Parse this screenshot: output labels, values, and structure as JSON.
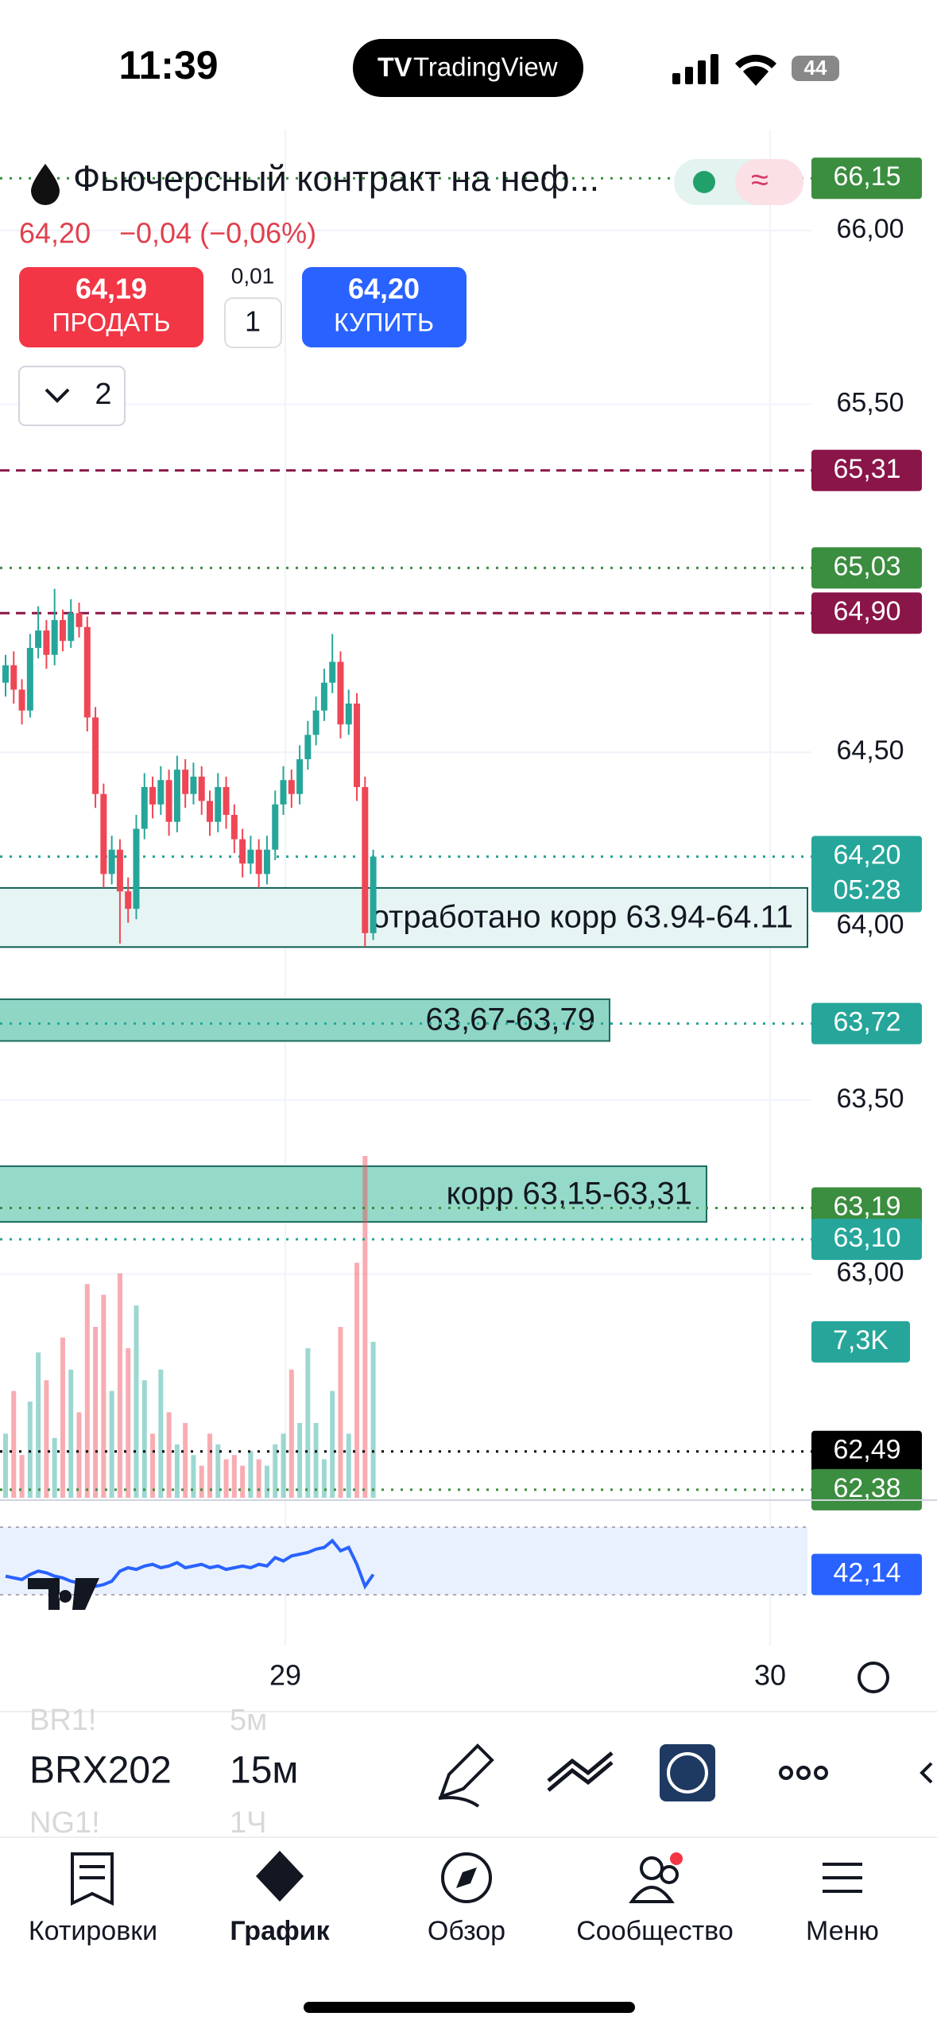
{
  "status_bar": {
    "time": "11:39",
    "app": "TradingView",
    "battery": "44"
  },
  "header": {
    "title": "Фьючерсный контракт на неф...",
    "price": "64,20",
    "change": "−0,04 (−0,06%)"
  },
  "trade": {
    "sell_price": "64,19",
    "sell": "ПРОДАТЬ",
    "qty_step": "0,01",
    "qty": "1",
    "buy_price": "64,20",
    "buy": "КУПИТЬ"
  },
  "dropdown": "2",
  "chart": {
    "ylim": [
      62.35,
      66.29
    ],
    "yticks": [
      {
        "value": 66,
        "label": "66,00"
      },
      {
        "value": 65.5,
        "label": "65,50"
      },
      {
        "value": 64.5,
        "label": "64,50"
      },
      {
        "value": 64,
        "label": "64,00"
      },
      {
        "value": 63.5,
        "label": "63,50"
      },
      {
        "value": 63,
        "label": "63,00"
      }
    ],
    "price_tags": [
      {
        "value": 66.15,
        "label": "66,15",
        "color": "#3b8d3f",
        "style": "dotted"
      },
      {
        "value": 65.31,
        "label": "65,31",
        "color": "#8a1548",
        "style": "dashed"
      },
      {
        "value": 65.03,
        "label": "65,03",
        "color": "#3b8d3f",
        "style": "dotted"
      },
      {
        "value": 64.9,
        "label": "64,90",
        "color": "#8a1548",
        "style": "dashed"
      },
      {
        "value": 64.2,
        "label": "64,20",
        "color": "#26a69a",
        "style": "dotted",
        "sub": "05:28"
      },
      {
        "value": 63.72,
        "label": "63,72",
        "color": "#26a69a",
        "style": "dotted"
      },
      {
        "value": 63.19,
        "label": "63,19",
        "color": "#3b8d3f",
        "style": "dotted"
      },
      {
        "value": 63.1,
        "label": "63,10",
        "color": "#26a69a",
        "style": "dotted"
      },
      {
        "value": 62.49,
        "label": "62,49",
        "color": "#000000",
        "style": "dotted"
      },
      {
        "value": 62.38,
        "label": "62,38",
        "color": "#3b8d3f",
        "style": "dotted"
      }
    ],
    "zones": [
      {
        "low": 63.94,
        "high": 64.11,
        "label": "отработано корр 63.94-64.11",
        "fill": "#e6f5f3",
        "border": "#0e5e55",
        "end": 1016
      },
      {
        "low": 63.67,
        "high": 63.79,
        "label": "63,67-63,79",
        "fill": "#8fd6c5",
        "border": "#1d6b5f",
        "end": 767
      },
      {
        "low": 63.15,
        "high": 63.31,
        "label": "корр 63,15-63,31",
        "fill": "#95d9c8",
        "border": "#1d6b5f",
        "end": 889
      }
    ],
    "up_color": "#26a69a",
    "down_color": "#ef4655",
    "candles": [
      {
        "o": 64.7,
        "h": 64.78,
        "l": 64.66,
        "c": 64.75
      },
      {
        "o": 64.75,
        "h": 64.79,
        "l": 64.64,
        "c": 64.68
      },
      {
        "o": 64.68,
        "h": 64.71,
        "l": 64.58,
        "c": 64.62
      },
      {
        "o": 64.62,
        "h": 64.84,
        "l": 64.6,
        "c": 64.8
      },
      {
        "o": 64.8,
        "h": 64.92,
        "l": 64.77,
        "c": 64.85
      },
      {
        "o": 64.85,
        "h": 64.88,
        "l": 64.74,
        "c": 64.78
      },
      {
        "o": 64.78,
        "h": 64.97,
        "l": 64.75,
        "c": 64.88
      },
      {
        "o": 64.88,
        "h": 64.91,
        "l": 64.79,
        "c": 64.82
      },
      {
        "o": 64.82,
        "h": 64.94,
        "l": 64.8,
        "c": 64.9
      },
      {
        "o": 64.9,
        "h": 64.93,
        "l": 64.83,
        "c": 64.86
      },
      {
        "o": 64.86,
        "h": 64.89,
        "l": 64.56,
        "c": 64.6
      },
      {
        "o": 64.6,
        "h": 64.63,
        "l": 64.34,
        "c": 64.38
      },
      {
        "o": 64.38,
        "h": 64.41,
        "l": 64.11,
        "c": 64.15
      },
      {
        "o": 64.15,
        "h": 64.26,
        "l": 64.12,
        "c": 64.22
      },
      {
        "o": 64.22,
        "h": 64.25,
        "l": 63.95,
        "c": 64.1
      },
      {
        "o": 64.1,
        "h": 64.14,
        "l": 64.01,
        "c": 64.05
      },
      {
        "o": 64.05,
        "h": 64.32,
        "l": 64.02,
        "c": 64.28
      },
      {
        "o": 64.28,
        "h": 64.44,
        "l": 64.25,
        "c": 64.4
      },
      {
        "o": 64.4,
        "h": 64.43,
        "l": 64.31,
        "c": 64.35
      },
      {
        "o": 64.35,
        "h": 64.46,
        "l": 64.32,
        "c": 64.42
      },
      {
        "o": 64.42,
        "h": 64.45,
        "l": 64.26,
        "c": 64.3
      },
      {
        "o": 64.3,
        "h": 64.49,
        "l": 64.27,
        "c": 64.45
      },
      {
        "o": 64.45,
        "h": 64.48,
        "l": 64.34,
        "c": 64.38
      },
      {
        "o": 64.38,
        "h": 64.47,
        "l": 64.35,
        "c": 64.43
      },
      {
        "o": 64.43,
        "h": 64.46,
        "l": 64.32,
        "c": 64.36
      },
      {
        "o": 64.36,
        "h": 64.39,
        "l": 64.26,
        "c": 64.3
      },
      {
        "o": 64.3,
        "h": 64.44,
        "l": 64.27,
        "c": 64.4
      },
      {
        "o": 64.4,
        "h": 64.43,
        "l": 64.28,
        "c": 64.32
      },
      {
        "o": 64.32,
        "h": 64.35,
        "l": 64.21,
        "c": 64.25
      },
      {
        "o": 64.25,
        "h": 64.28,
        "l": 64.14,
        "c": 64.18
      },
      {
        "o": 64.18,
        "h": 64.26,
        "l": 64.15,
        "c": 64.22
      },
      {
        "o": 64.22,
        "h": 64.25,
        "l": 64.11,
        "c": 64.15
      },
      {
        "o": 64.15,
        "h": 64.26,
        "l": 64.12,
        "c": 64.22
      },
      {
        "o": 64.22,
        "h": 64.39,
        "l": 64.19,
        "c": 64.35
      },
      {
        "o": 64.35,
        "h": 64.46,
        "l": 64.32,
        "c": 64.42
      },
      {
        "o": 64.42,
        "h": 64.45,
        "l": 64.34,
        "c": 64.38
      },
      {
        "o": 64.38,
        "h": 64.52,
        "l": 64.35,
        "c": 64.48
      },
      {
        "o": 64.48,
        "h": 64.59,
        "l": 64.45,
        "c": 64.55
      },
      {
        "o": 64.55,
        "h": 64.66,
        "l": 64.52,
        "c": 64.62
      },
      {
        "o": 64.62,
        "h": 64.74,
        "l": 64.59,
        "c": 64.7
      },
      {
        "o": 64.7,
        "h": 64.84,
        "l": 64.67,
        "c": 64.76
      },
      {
        "o": 64.76,
        "h": 64.79,
        "l": 64.54,
        "c": 64.58
      },
      {
        "o": 64.58,
        "h": 64.68,
        "l": 64.55,
        "c": 64.64
      },
      {
        "o": 64.64,
        "h": 64.67,
        "l": 64.36,
        "c": 64.4
      },
      {
        "o": 64.4,
        "h": 64.43,
        "l": 63.94,
        "c": 63.98
      },
      {
        "o": 63.98,
        "h": 64.22,
        "l": 63.96,
        "c": 64.2
      }
    ],
    "volume": [
      3000,
      5000,
      2000,
      4500,
      6800,
      5500,
      2800,
      7500,
      6000,
      4000,
      10000,
      8000,
      9500,
      5000,
      10500,
      7000,
      9000,
      5500,
      3000,
      6000,
      4000,
      2500,
      3500,
      2000,
      1500,
      3000,
      2500,
      1800,
      2000,
      1500,
      2200,
      1800,
      1500,
      2500,
      3000,
      6000,
      3500,
      7000,
      3500,
      1800,
      5000,
      8000,
      3000,
      11000,
      16000,
      7300
    ],
    "volume_tag": "7,3K",
    "rsi": {
      "band": [
        30,
        70
      ],
      "values": [
        41,
        40,
        39,
        42,
        44,
        43,
        41,
        40,
        38,
        37,
        36,
        35,
        36,
        38,
        44,
        46,
        45,
        47,
        48,
        46,
        47,
        49,
        46,
        47,
        48,
        46,
        47,
        45,
        46,
        47,
        46,
        48,
        47,
        52,
        50,
        53,
        54,
        55,
        57,
        58,
        62,
        56,
        58,
        48,
        35,
        42
      ],
      "tag": "42,14",
      "color": "#2962ff"
    },
    "x_labels": [
      {
        "label": "29",
        "x": 359
      },
      {
        "label": "30",
        "x": 969
      }
    ]
  },
  "toolbar": {
    "symbol": "BRX202",
    "interval": "15м",
    "symbol_prev": "BR1!",
    "symbol_next": "NG1!",
    "interval_prev": "5м",
    "interval_next": "1Ч"
  },
  "nav": [
    "Котировки",
    "График",
    "Обзор",
    "Сообщество",
    "Меню"
  ]
}
